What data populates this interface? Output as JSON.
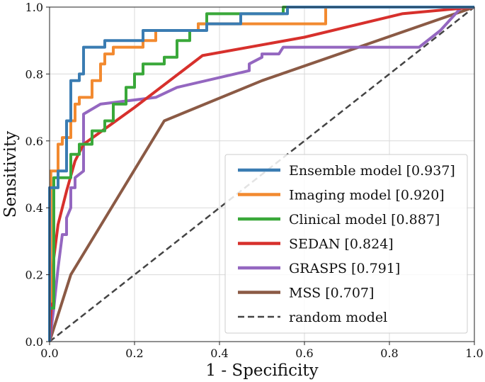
{
  "chart_data": {
    "type": "line",
    "title": "",
    "xlabel": "1 - Specificity",
    "ylabel": "Sensitivity",
    "xlim": [
      0,
      1
    ],
    "ylim": [
      0,
      1
    ],
    "xticks": [
      "0.0",
      "0.2",
      "0.4",
      "0.6",
      "0.8",
      "1.0"
    ],
    "yticks": [
      "0.0",
      "0.2",
      "0.4",
      "0.6",
      "0.8",
      "1.0"
    ],
    "grid": true,
    "legend_position": "bottom-right",
    "series": [
      {
        "name": "Ensemble model [0.937]",
        "color": "#3a7cb2",
        "points": [
          [
            0,
            0
          ],
          [
            0,
            0.46
          ],
          [
            0.02,
            0.46
          ],
          [
            0.02,
            0.51
          ],
          [
            0.04,
            0.51
          ],
          [
            0.04,
            0.66
          ],
          [
            0.05,
            0.66
          ],
          [
            0.05,
            0.78
          ],
          [
            0.07,
            0.78
          ],
          [
            0.07,
            0.8
          ],
          [
            0.08,
            0.8
          ],
          [
            0.08,
            0.88
          ],
          [
            0.13,
            0.88
          ],
          [
            0.13,
            0.9
          ],
          [
            0.22,
            0.9
          ],
          [
            0.22,
            0.93
          ],
          [
            0.37,
            0.93
          ],
          [
            0.37,
            0.95
          ],
          [
            0.45,
            0.95
          ],
          [
            0.45,
            0.98
          ],
          [
            0.56,
            0.98
          ],
          [
            0.56,
            1.0
          ],
          [
            1,
            1
          ]
        ]
      },
      {
        "name": "Imaging model [0.920]",
        "color": "#f28a30",
        "points": [
          [
            0,
            0
          ],
          [
            0,
            0.12
          ],
          [
            0.003,
            0.12
          ],
          [
            0.003,
            0.51
          ],
          [
            0.02,
            0.51
          ],
          [
            0.02,
            0.59
          ],
          [
            0.03,
            0.59
          ],
          [
            0.03,
            0.61
          ],
          [
            0.05,
            0.61
          ],
          [
            0.05,
            0.66
          ],
          [
            0.06,
            0.66
          ],
          [
            0.06,
            0.71
          ],
          [
            0.07,
            0.71
          ],
          [
            0.07,
            0.73
          ],
          [
            0.1,
            0.73
          ],
          [
            0.1,
            0.78
          ],
          [
            0.12,
            0.78
          ],
          [
            0.12,
            0.83
          ],
          [
            0.13,
            0.83
          ],
          [
            0.13,
            0.86
          ],
          [
            0.15,
            0.86
          ],
          [
            0.15,
            0.88
          ],
          [
            0.22,
            0.88
          ],
          [
            0.22,
            0.9
          ],
          [
            0.25,
            0.9
          ],
          [
            0.25,
            0.93
          ],
          [
            0.35,
            0.93
          ],
          [
            0.35,
            0.95
          ],
          [
            0.65,
            0.95
          ],
          [
            0.65,
            1.0
          ],
          [
            1,
            1
          ]
        ]
      },
      {
        "name": "Clinical model [0.887]",
        "color": "#3aa83a",
        "points": [
          [
            0,
            0
          ],
          [
            0,
            0.1
          ],
          [
            0.01,
            0.1
          ],
          [
            0.01,
            0.49
          ],
          [
            0.05,
            0.49
          ],
          [
            0.05,
            0.56
          ],
          [
            0.07,
            0.56
          ],
          [
            0.07,
            0.59
          ],
          [
            0.1,
            0.59
          ],
          [
            0.1,
            0.63
          ],
          [
            0.13,
            0.63
          ],
          [
            0.13,
            0.66
          ],
          [
            0.15,
            0.66
          ],
          [
            0.15,
            0.71
          ],
          [
            0.18,
            0.71
          ],
          [
            0.18,
            0.76
          ],
          [
            0.2,
            0.76
          ],
          [
            0.2,
            0.8
          ],
          [
            0.22,
            0.8
          ],
          [
            0.22,
            0.83
          ],
          [
            0.27,
            0.83
          ],
          [
            0.27,
            0.85
          ],
          [
            0.3,
            0.85
          ],
          [
            0.3,
            0.9
          ],
          [
            0.33,
            0.9
          ],
          [
            0.33,
            0.93
          ],
          [
            0.35,
            0.93
          ],
          [
            0.35,
            0.95
          ],
          [
            0.37,
            0.95
          ],
          [
            0.37,
            0.98
          ],
          [
            0.55,
            0.98
          ],
          [
            0.55,
            1.0
          ],
          [
            1,
            1
          ]
        ]
      },
      {
        "name": "SEDAN [0.824]",
        "color": "#d7302c",
        "points": [
          [
            0,
            0
          ],
          [
            0.01,
            0.25
          ],
          [
            0.02,
            0.35
          ],
          [
            0.04,
            0.45
          ],
          [
            0.06,
            0.54
          ],
          [
            0.08,
            0.59
          ],
          [
            0.2,
            0.7
          ],
          [
            0.36,
            0.855
          ],
          [
            0.6,
            0.91
          ],
          [
            0.83,
            0.98
          ],
          [
            1,
            1
          ]
        ]
      },
      {
        "name": "GRASPS [0.791]",
        "color": "#9467c0",
        "points": [
          [
            0,
            0
          ],
          [
            0.01,
            0.1
          ],
          [
            0.02,
            0.22
          ],
          [
            0.03,
            0.32
          ],
          [
            0.04,
            0.32
          ],
          [
            0.04,
            0.37
          ],
          [
            0.05,
            0.4
          ],
          [
            0.05,
            0.46
          ],
          [
            0.06,
            0.46
          ],
          [
            0.06,
            0.49
          ],
          [
            0.08,
            0.51
          ],
          [
            0.08,
            0.68
          ],
          [
            0.12,
            0.71
          ],
          [
            0.25,
            0.73
          ],
          [
            0.3,
            0.76
          ],
          [
            0.47,
            0.81
          ],
          [
            0.47,
            0.83
          ],
          [
            0.5,
            0.85
          ],
          [
            0.5,
            0.86
          ],
          [
            0.54,
            0.86
          ],
          [
            0.55,
            0.88
          ],
          [
            0.87,
            0.88
          ],
          [
            0.92,
            0.93
          ],
          [
            0.97,
            1.0
          ],
          [
            1,
            1
          ]
        ]
      },
      {
        "name": "MSS [0.707]",
        "color": "#8b5a45",
        "points": [
          [
            0,
            0
          ],
          [
            0.05,
            0.2
          ],
          [
            0.27,
            0.66
          ],
          [
            0.5,
            0.78
          ],
          [
            0.75,
            0.89
          ],
          [
            1,
            1
          ]
        ]
      },
      {
        "name": "random model",
        "color": "#444444",
        "dashed": true,
        "points": [
          [
            0,
            0
          ],
          [
            1,
            1
          ]
        ]
      }
    ]
  }
}
